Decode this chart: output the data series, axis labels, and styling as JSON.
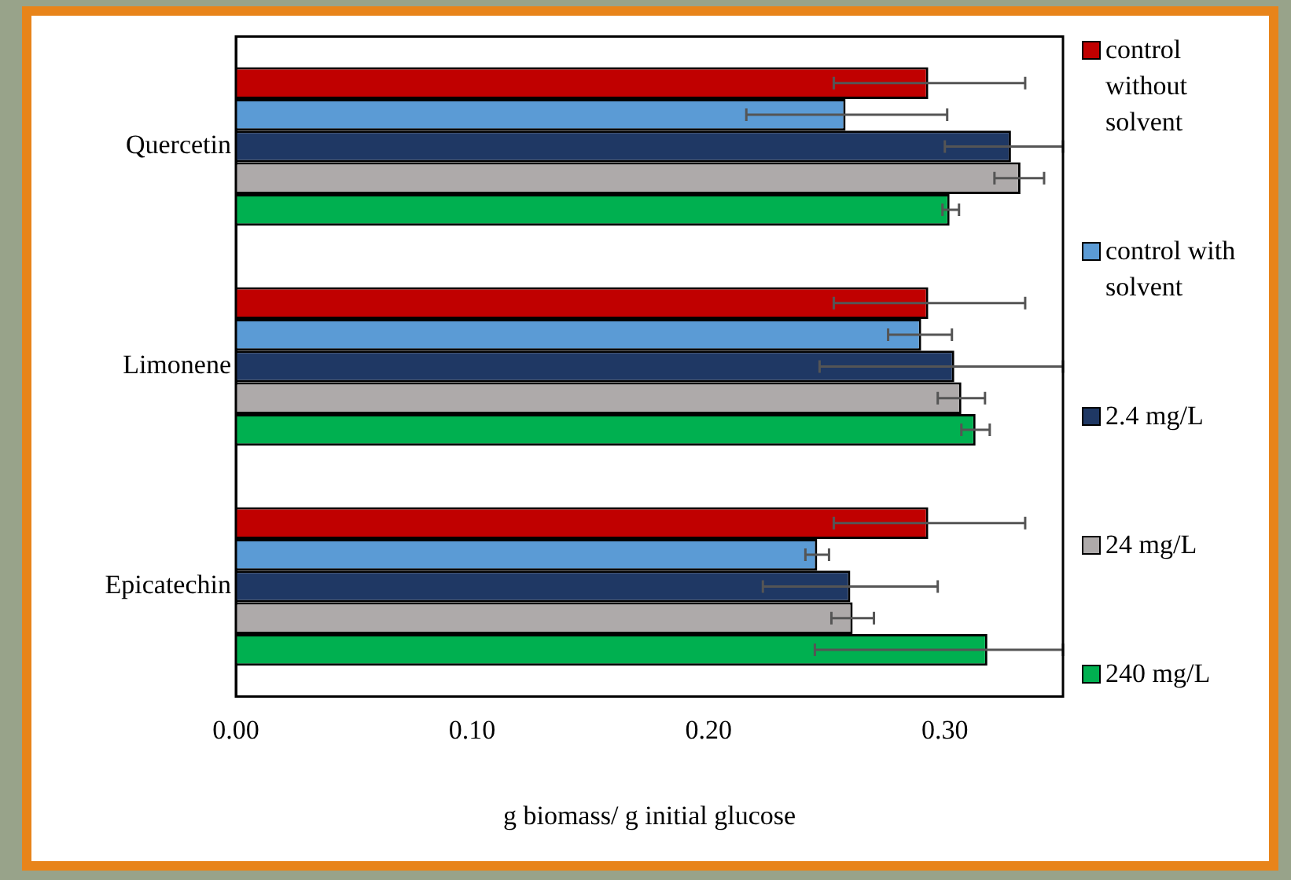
{
  "chart_data": {
    "type": "bar",
    "orientation": "horizontal",
    "xlabel": "g biomass/ g initial glucose",
    "categories": [
      "Quercetin",
      "Limonene",
      "Epicatechin"
    ],
    "series": [
      {
        "name": "control without solvent",
        "color": "#c00000",
        "values": [
          0.293,
          0.293,
          0.293
        ],
        "errors": [
          [
            0.253,
            0.334
          ],
          [
            0.253,
            0.334
          ],
          [
            0.253,
            0.334
          ]
        ]
      },
      {
        "name": "control with solvent",
        "color": "#5b9bd5",
        "values": [
          0.258,
          0.29,
          0.246
        ],
        "errors": [
          [
            0.216,
            0.301
          ],
          [
            0.276,
            0.303
          ],
          [
            0.241,
            0.251
          ]
        ]
      },
      {
        "name": "2.4 mg/L",
        "color": "#1f3864",
        "values": [
          0.328,
          0.304,
          0.26
        ],
        "errors": [
          [
            0.3,
            0.35
          ],
          [
            0.247,
            0.35
          ],
          [
            0.223,
            0.297
          ]
        ]
      },
      {
        "name": "24 mg/L",
        "color": "#aeaaaa",
        "values": [
          0.332,
          0.307,
          0.261
        ],
        "errors": [
          [
            0.321,
            0.342
          ],
          [
            0.297,
            0.317
          ],
          [
            0.252,
            0.27
          ]
        ]
      },
      {
        "name": "240 mg/L",
        "color": "#00b050",
        "values": [
          0.302,
          0.313,
          0.318
        ],
        "errors": [
          [
            0.299,
            0.306
          ],
          [
            0.307,
            0.319
          ],
          [
            0.245,
            0.35
          ]
        ]
      }
    ],
    "xlim": [
      0,
      0.35
    ],
    "xticks": [
      {
        "value": 0,
        "label": "0.00"
      },
      {
        "value": 0.1,
        "label": "0.10"
      },
      {
        "value": 0.2,
        "label": "0.20"
      },
      {
        "value": 0.3,
        "label": "0.30"
      }
    ],
    "grid": false,
    "legend": "right"
  }
}
